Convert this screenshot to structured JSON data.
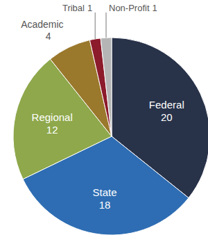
{
  "chart_data": {
    "type": "pie",
    "categories": [
      "Federal",
      "State",
      "Regional",
      "Academic",
      "Tribal",
      "Non-Profit"
    ],
    "values": [
      20,
      18,
      12,
      4,
      1,
      1
    ],
    "colors": [
      "#283249",
      "#2e6db3",
      "#8ea84b",
      "#9a782c",
      "#8c1b2b",
      "#b5b5b5"
    ],
    "data_labels": true
  }
}
